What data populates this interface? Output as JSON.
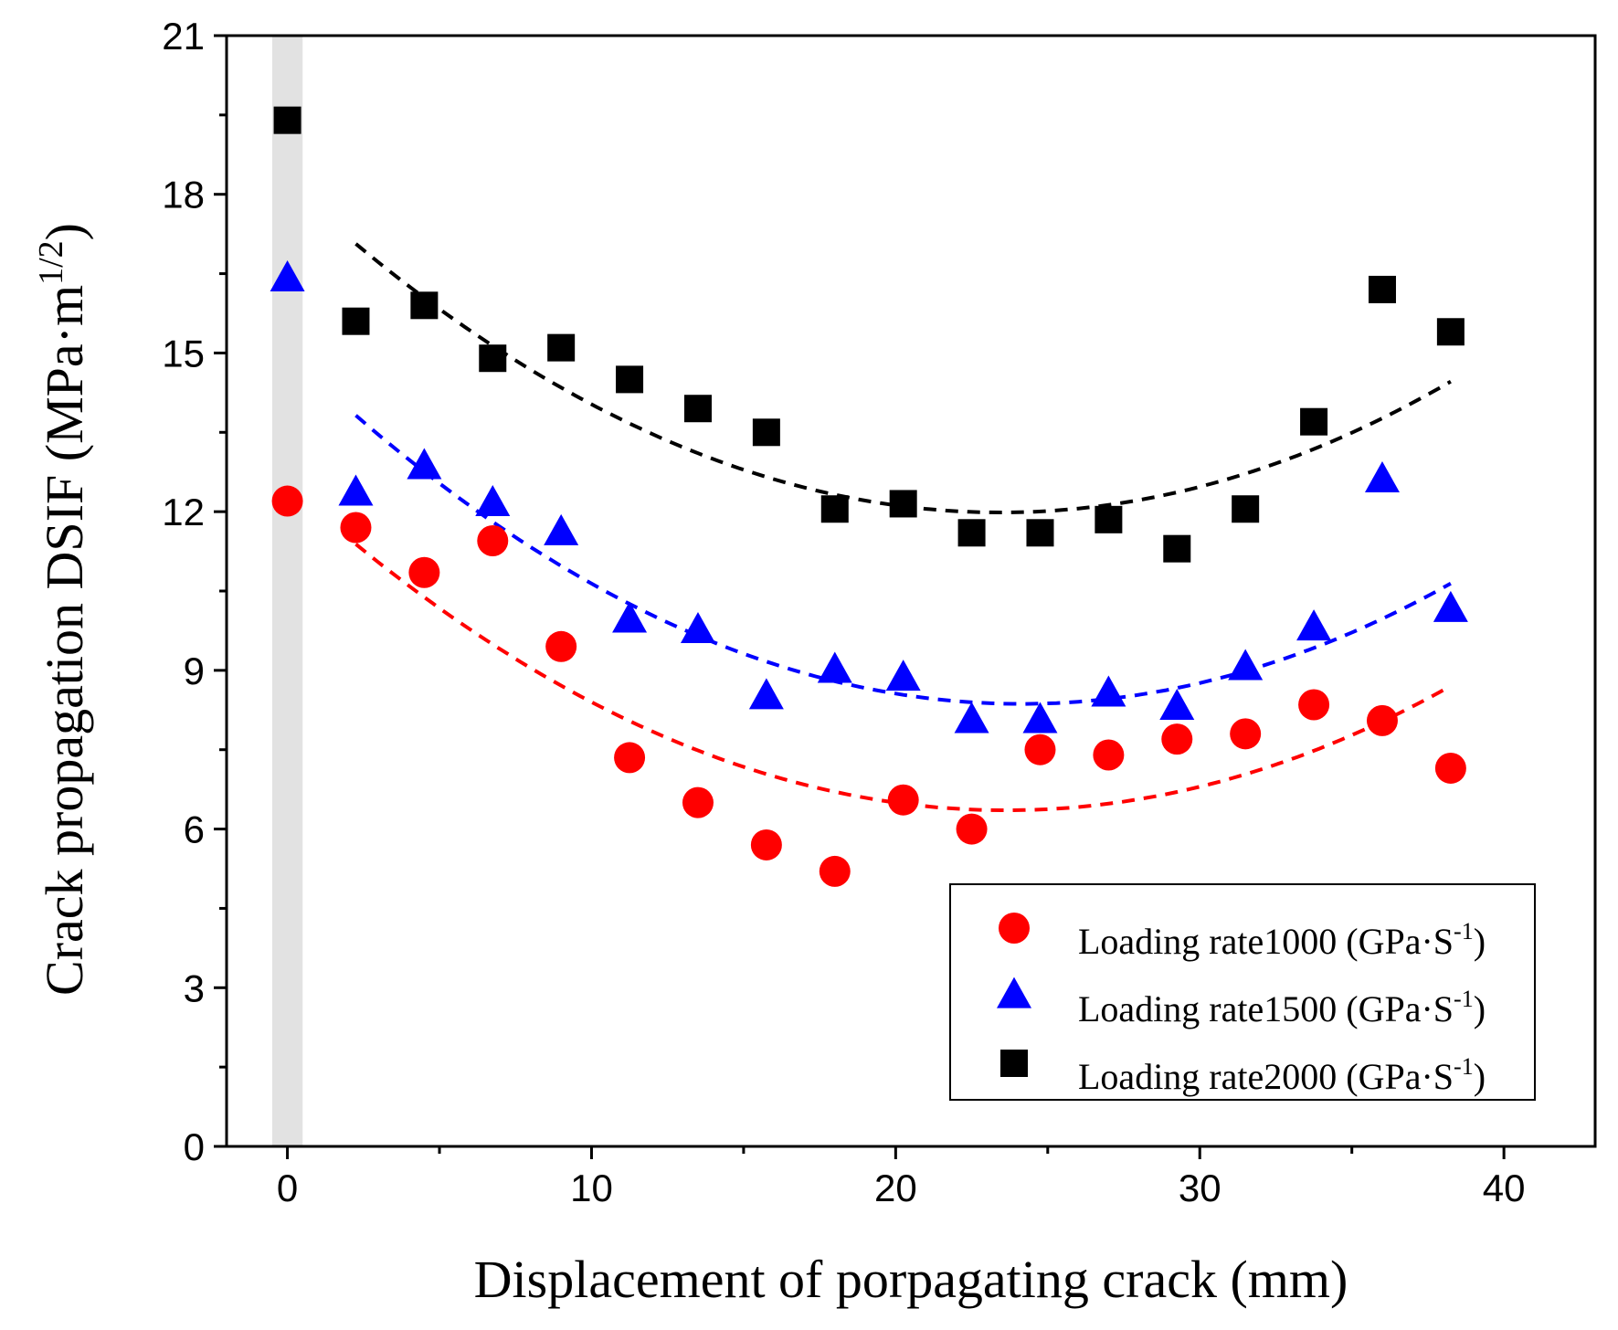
{
  "chart_data": {
    "type": "scatter",
    "xlabel": "Displacement of porpagating crack (mm)",
    "ylabel": {
      "main": "Crack propagation DSIF (MPa·m",
      "sup": "1/2",
      "close": ")"
    },
    "xlim": [
      -2,
      43
    ],
    "ylim": [
      0,
      21
    ],
    "xticks": [
      0,
      10,
      20,
      30,
      40
    ],
    "xtick_labels": [
      "0",
      "10",
      "20",
      "30",
      "40"
    ],
    "yticks": [
      0,
      3,
      6,
      9,
      12,
      15,
      18,
      21
    ],
    "ytick_labels": [
      "0",
      "3",
      "6",
      "9",
      "12",
      "15",
      "18",
      "21"
    ],
    "highlight_band": [
      -0.5,
      0.5
    ],
    "legend_position": "lower-right",
    "x": [
      0,
      2.25,
      4.5,
      6.75,
      9,
      11.25,
      13.5,
      15.75,
      18,
      20.25,
      22.5,
      24.75,
      27,
      29.25,
      31.5,
      33.75,
      36,
      38.25
    ],
    "series": [
      {
        "name": "Loading rate1000",
        "unit": "(GPa·S",
        "sup": "-1",
        "close": ")",
        "marker": "circle",
        "color": "#ff0000",
        "values": [
          12.2,
          11.7,
          10.85,
          11.45,
          9.45,
          7.35,
          6.5,
          5.7,
          5.2,
          6.55,
          6.0,
          7.5,
          7.4,
          7.7,
          7.8,
          8.35,
          8.05,
          7.15
        ],
        "fit": {
          "x_range": [
            2.25,
            38.25
          ],
          "coeffs": [
            0.011,
            -0.52,
            12.5
          ]
        }
      },
      {
        "name": "Loading rate1500",
        "unit": "(GPa·S",
        "sup": "-1",
        "close": ")",
        "marker": "triangle",
        "color": "#0000ff",
        "values": [
          16.4,
          12.35,
          12.85,
          12.15,
          11.6,
          9.95,
          9.75,
          8.5,
          9.0,
          8.85,
          8.05,
          8.05,
          8.55,
          8.3,
          9.05,
          9.8,
          12.6,
          10.15
        ],
        "fit": {
          "x_range": [
            2.25,
            38.25
          ],
          "coeffs": [
            0.0114,
            -0.55,
            15.0
          ]
        }
      },
      {
        "name": "Loading rate2000",
        "unit": "(GPa·S",
        "sup": "-1",
        "close": ")",
        "marker": "square",
        "color": "#000000",
        "values": [
          19.4,
          15.6,
          15.9,
          14.9,
          15.1,
          14.5,
          13.95,
          13.5,
          12.05,
          12.15,
          11.6,
          11.6,
          11.85,
          11.3,
          12.05,
          13.7,
          16.2,
          15.4
        ],
        "fit": {
          "x_range": [
            2.25,
            38.25
          ],
          "coeffs": [
            0.0113,
            -0.53,
            18.2
          ]
        }
      }
    ]
  }
}
